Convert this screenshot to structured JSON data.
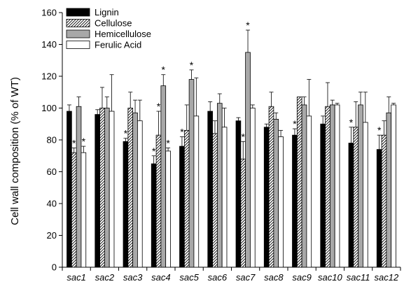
{
  "chart_data": {
    "type": "bar",
    "ylabel": "Cell wall composition (% of WT)",
    "xlabel": "",
    "ylim": [
      0,
      160
    ],
    "yticks": [
      0,
      20,
      40,
      60,
      80,
      100,
      120,
      140,
      160
    ],
    "categories": [
      "sac1",
      "sac2",
      "sac3",
      "sac4",
      "sac5",
      "sac6",
      "sac7",
      "sac8",
      "sac9",
      "sac10",
      "sac11",
      "sac12"
    ],
    "legend_position": "top-left",
    "series": [
      {
        "name": "Lignin",
        "fill": "#000000",
        "values": [
          98,
          96,
          79,
          65,
          76,
          98,
          92,
          88,
          83,
          90,
          78,
          74
        ],
        "errors": [
          4,
          3,
          2,
          5,
          6,
          6,
          2,
          2,
          4,
          5,
          10,
          9
        ],
        "significant": [
          false,
          false,
          true,
          true,
          true,
          false,
          false,
          false,
          true,
          false,
          true,
          true
        ]
      },
      {
        "name": "Cellulose",
        "fill": "hatch",
        "values": [
          72,
          100,
          100,
          83,
          86,
          84,
          68,
          101,
          107,
          101,
          88,
          83
        ],
        "errors": [
          3,
          13,
          10,
          15,
          16,
          8,
          11,
          9,
          0,
          15,
          16,
          9
        ],
        "significant": [
          true,
          false,
          false,
          true,
          false,
          false,
          true,
          false,
          false,
          false,
          false,
          false
        ]
      },
      {
        "name": "Hemicellulose",
        "fill": "#a8a8a8",
        "values": [
          101,
          100,
          97,
          114,
          118,
          103,
          135,
          93,
          102,
          102,
          102,
          97
        ],
        "errors": [
          6,
          7,
          8,
          7,
          6,
          6,
          14,
          4,
          5,
          3,
          8,
          10
        ],
        "significant": [
          false,
          false,
          false,
          true,
          true,
          false,
          true,
          false,
          false,
          false,
          false,
          false
        ]
      },
      {
        "name": "Ferulic Acid",
        "fill": "#ffffff",
        "values": [
          72,
          98,
          92,
          73,
          95,
          88,
          100,
          82,
          95,
          102,
          91,
          102
        ],
        "errors": [
          4,
          23,
          13,
          2,
          24,
          12,
          2,
          4,
          23,
          1,
          19,
          1
        ],
        "significant": [
          true,
          false,
          false,
          true,
          false,
          false,
          false,
          false,
          false,
          false,
          false,
          false
        ]
      }
    ]
  }
}
